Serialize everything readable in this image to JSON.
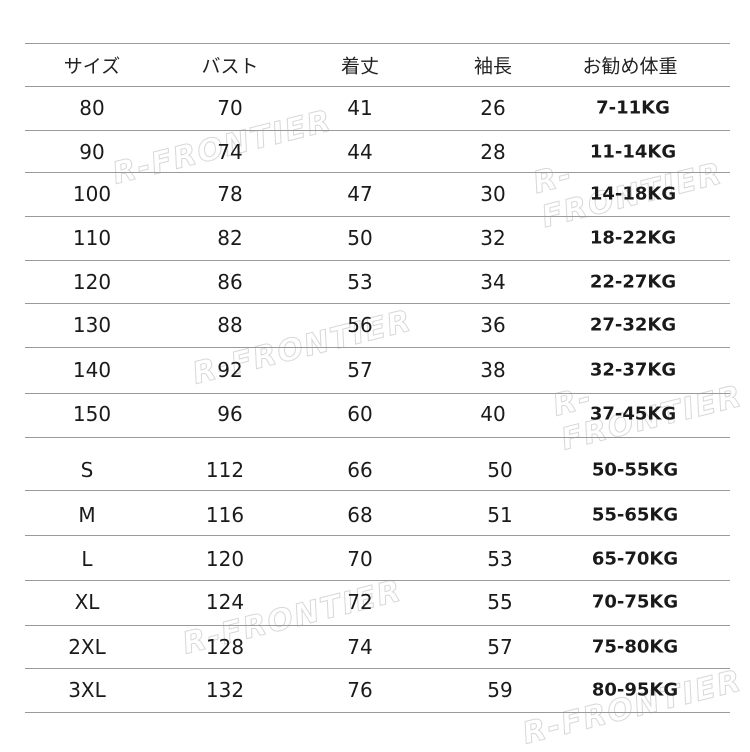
{
  "watermark": "R-FRONTIER",
  "header": [
    "サイズ",
    "バスト",
    "着丈",
    "袖長",
    "お勧め体重"
  ],
  "kids_rows": [
    [
      "80",
      "70",
      "41",
      "26",
      "7-11KG"
    ],
    [
      "90",
      "74",
      "44",
      "28",
      "11-14KG"
    ],
    [
      "100",
      "78",
      "47",
      "30",
      "14-18KG"
    ],
    [
      "110",
      "82",
      "50",
      "32",
      "18-22KG"
    ],
    [
      "120",
      "86",
      "53",
      "34",
      "22-27KG"
    ],
    [
      "130",
      "88",
      "56",
      "36",
      "27-32KG"
    ],
    [
      "140",
      "92",
      "57",
      "38",
      "32-37KG"
    ],
    [
      "150",
      "96",
      "60",
      "40",
      "37-45KG"
    ]
  ],
  "adult_rows": [
    [
      "S",
      "112",
      "66",
      "50",
      "50-55KG"
    ],
    [
      "M",
      "116",
      "68",
      "51",
      "55-65KG"
    ],
    [
      "L",
      "120",
      "70",
      "53",
      "65-70KG"
    ],
    [
      "XL",
      "124",
      "72",
      "55",
      "70-75KG"
    ],
    [
      "2XL",
      "128",
      "74",
      "57",
      "75-80KG"
    ],
    [
      "3XL",
      "132",
      "76",
      "59",
      "80-95KG"
    ]
  ]
}
